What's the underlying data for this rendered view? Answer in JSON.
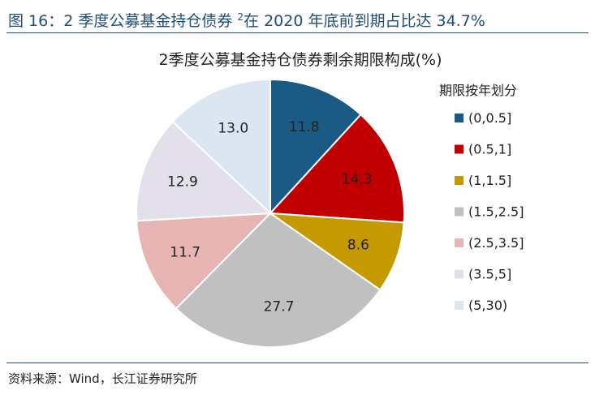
{
  "figure": {
    "title_prefix": "图 16：2 季度公募基金持仓债券 ",
    "title_sup": "2",
    "title_suffix": "在 2020 年底前到期占比达 34.7%",
    "source": "资料来源：Wind，长江证券研究所"
  },
  "chart_data": {
    "type": "pie",
    "title": "2季度公募基金持仓债券剩余期限构成(%)",
    "legend_title": "期限按年划分",
    "legend_position": "right",
    "start_angle_deg": 0,
    "direction": "clockwise",
    "slices": [
      {
        "label": "(0,0.5]",
        "value": 11.8,
        "color": "#1b5a85"
      },
      {
        "label": "(0.5,1]",
        "value": 14.3,
        "color": "#c00000"
      },
      {
        "label": "(1,1.5]",
        "value": 8.6,
        "color": "#c49a00"
      },
      {
        "label": "(1.5,2.5]",
        "value": 27.7,
        "color": "#c0c0c0"
      },
      {
        "label": "(2.5,3.5]",
        "value": 11.7,
        "color": "#e7b6b4"
      },
      {
        "label": "(3.5,5]",
        "value": 12.9,
        "color": "#e3e0eb"
      },
      {
        "label": "(5,30)",
        "value": 13.0,
        "color": "#dce6f2"
      }
    ]
  }
}
